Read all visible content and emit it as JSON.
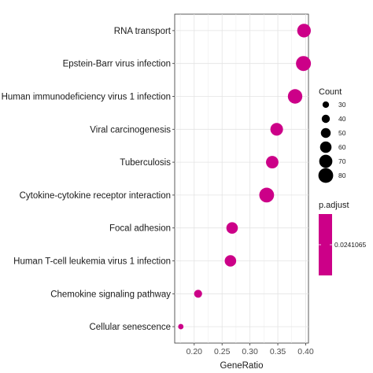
{
  "chart_data": {
    "type": "scatter",
    "xlabel": "GeneRatio",
    "ylabel": "",
    "title": "",
    "xlim": [
      0.165,
      0.405
    ],
    "xticks": [
      0.2,
      0.25,
      0.3,
      0.35,
      0.4
    ],
    "xtick_labels": [
      "0.20",
      "0.25",
      "0.30",
      "0.35",
      "0.40"
    ],
    "grid": true,
    "categories": [
      "RNA transport",
      "Epstein-Barr virus infection",
      "Human immunodeficiency virus 1 infection",
      "Viral carcinogenesis",
      "Tuberculosis",
      "Cytokine-cytokine receptor interaction",
      "Focal adhesion",
      "Human T-cell leukemia virus 1 infection",
      "Chemokine signaling pathway",
      "Cellular senescence"
    ],
    "points": [
      {
        "category": "RNA transport",
        "x": 0.397,
        "count": 73
      },
      {
        "category": "Epstein-Barr virus infection",
        "x": 0.396,
        "count": 81
      },
      {
        "category": "Human immunodeficiency virus 1 infection",
        "x": 0.381,
        "count": 78
      },
      {
        "category": "Viral carcinogenesis",
        "x": 0.348,
        "count": 67
      },
      {
        "category": "Tuberculosis",
        "x": 0.34,
        "count": 66
      },
      {
        "category": "Cytokine-cytokine receptor interaction",
        "x": 0.33,
        "count": 80
      },
      {
        "category": "Focal adhesion",
        "x": 0.268,
        "count": 60
      },
      {
        "category": "Human T-cell leukemia virus 1 infection",
        "x": 0.265,
        "count": 60
      },
      {
        "category": "Chemokine signaling pathway",
        "x": 0.207,
        "count": 39
      },
      {
        "category": "Cellular senescence",
        "x": 0.176,
        "count": 23
      }
    ],
    "point_color": "#cc0088",
    "legend": {
      "placement": "right",
      "size_title": "Count",
      "size_values": [
        30,
        40,
        50,
        60,
        70,
        80
      ],
      "size_labels": [
        "30",
        "40",
        "50",
        "60",
        "70",
        "80"
      ],
      "color_title": "p.adjust",
      "color_label": "0.0241065"
    }
  }
}
